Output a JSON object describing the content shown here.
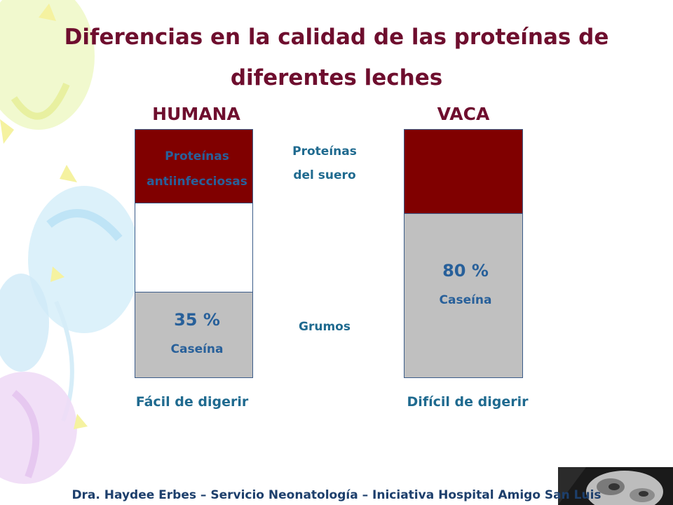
{
  "title": {
    "line1": "Diferencias en la calidad de las proteínas de",
    "line2": "diferentes leches"
  },
  "left": {
    "heading": "HUMANA",
    "top_line1": "Proteínas",
    "top_line2": "antiinfecciosas",
    "percent": "35 %",
    "casein": "Caseína",
    "caption": "Fácil de digerir"
  },
  "middle": {
    "whey_line1": "Proteínas",
    "whey_line2": "del suero",
    "curds": "Grumos"
  },
  "right": {
    "heading": "VACA",
    "percent": "80 %",
    "casein": "Caseína",
    "caption": "Difícil de digerir"
  },
  "footer": "Dra. Haydee Erbes – Servicio Neonatología – Iniciativa Hospital Amigo San Luis",
  "colors": {
    "title": "#6e0e2e",
    "protein_fill": "#800000",
    "casein_fill": "#c0c0c0",
    "label_blue": "#28609a"
  },
  "icons": [
    "balloon-decoration-icon",
    "baby-photo-icon"
  ]
}
